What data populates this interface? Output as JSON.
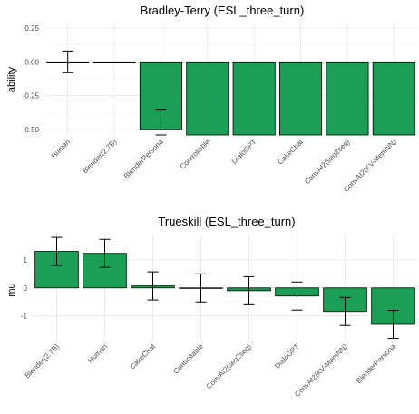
{
  "chart_data": [
    {
      "type": "bar",
      "title": "Bradley-Terry (ESL_three_turn)",
      "xlabel": "",
      "ylabel": "ability",
      "ylim": [
        -0.54,
        0.29
      ],
      "yticks": [
        0.25,
        0.0,
        -0.25,
        -0.5
      ],
      "ytick_labels": [
        "0.25",
        "0.00",
        "-0.25",
        "-0.50"
      ],
      "bar_color": "#1b9e55",
      "grid": true,
      "categories": [
        "Human",
        "Blender(2.7B)",
        "BlenderPersona",
        "Controllable",
        "DialoGPT",
        "CakeChat",
        "ConvAI2(seq2seq)",
        "ConvAI2(KV-MemNN)"
      ],
      "values": [
        0.0,
        0.0,
        -0.5,
        -0.54,
        -0.54,
        -0.54,
        -0.54,
        -0.54
      ],
      "error_low": [
        -0.08,
        null,
        -0.54,
        null,
        null,
        null,
        null,
        null
      ],
      "error_high": [
        0.08,
        null,
        -0.35,
        null,
        null,
        null,
        null,
        null
      ]
    },
    {
      "type": "bar",
      "title": "Trueskill (ESL_three_turn)",
      "xlabel": "",
      "ylabel": "mu",
      "ylim": [
        -1.85,
        1.9
      ],
      "yticks": [
        1,
        0,
        -1
      ],
      "ytick_labels": [
        "1",
        "0",
        "-1"
      ],
      "bar_color": "#1b9e55",
      "grid": true,
      "categories": [
        "Blender(2.7B)",
        "Human",
        "CakeChat",
        "Controllable",
        "ConvAI2(seq2seq)",
        "DialoGPT",
        "ConvAI2(KV-MemNN)",
        "BlenderPersona"
      ],
      "values": [
        1.3,
        1.23,
        0.07,
        0.0,
        -0.1,
        -0.29,
        -0.84,
        -1.3
      ],
      "error_low": [
        0.8,
        0.73,
        -0.43,
        -0.5,
        -0.6,
        -0.79,
        -1.34,
        -1.8
      ],
      "error_high": [
        1.8,
        1.73,
        0.57,
        0.5,
        0.4,
        0.21,
        -0.34,
        -0.8
      ]
    }
  ]
}
